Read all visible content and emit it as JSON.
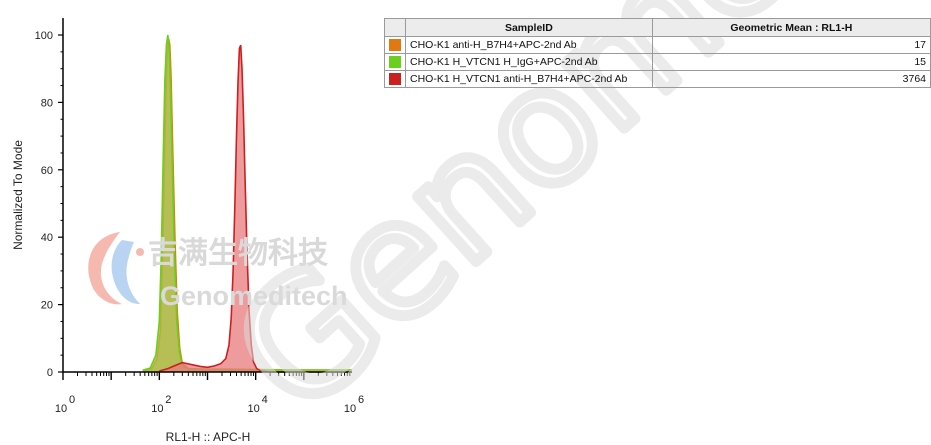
{
  "chart_data": {
    "type": "area",
    "xlabel": "RL1-H :: APC-H",
    "ylabel": "Normalized To Mode",
    "x_scale": "log",
    "xlim": [
      1,
      1000000
    ],
    "ylim": [
      0,
      100
    ],
    "x_ticks": [
      {
        "base": "10",
        "exp": "0"
      },
      {
        "base": "10",
        "exp": "2"
      },
      {
        "base": "10",
        "exp": "4"
      },
      {
        "base": "10",
        "exp": "6"
      }
    ],
    "y_ticks": [
      "0",
      "20",
      "40",
      "60",
      "80",
      "100"
    ],
    "series": [
      {
        "name": "CHO-K1 anti-H_B7H4+APC-2nd Ab",
        "color": "#e07a10",
        "fill": "#d6a24c",
        "geometric_mean": "17",
        "points": [
          [
            50,
            0.5
          ],
          [
            70,
            1
          ],
          [
            90,
            4
          ],
          [
            105,
            12
          ],
          [
            115,
            30
          ],
          [
            125,
            55
          ],
          [
            135,
            80
          ],
          [
            145,
            94
          ],
          [
            155,
            99
          ],
          [
            165,
            97
          ],
          [
            175,
            88
          ],
          [
            190,
            65
          ],
          [
            210,
            40
          ],
          [
            235,
            18
          ],
          [
            265,
            7
          ],
          [
            300,
            2.5
          ],
          [
            400,
            1
          ],
          [
            1000,
            0.8
          ],
          [
            3000,
            0.8
          ],
          [
            100000,
            0.6
          ]
        ]
      },
      {
        "name": "CHO-K1 H_VTCN1 H_IgG+APC-2nd Ab",
        "color": "#6bcf1e",
        "fill": "#a8c24a",
        "geometric_mean": "15",
        "points": [
          [
            45,
            0.5
          ],
          [
            65,
            1.2
          ],
          [
            85,
            5
          ],
          [
            100,
            15
          ],
          [
            110,
            35
          ],
          [
            120,
            62
          ],
          [
            130,
            86
          ],
          [
            140,
            97
          ],
          [
            150,
            100
          ],
          [
            160,
            96
          ],
          [
            170,
            85
          ],
          [
            185,
            62
          ],
          [
            205,
            36
          ],
          [
            230,
            15
          ],
          [
            260,
            6
          ],
          [
            300,
            2
          ],
          [
            400,
            0.8
          ],
          [
            1000,
            0.6
          ],
          [
            100000,
            0.6
          ]
        ]
      },
      {
        "name": "CHO-K1 H_VTCN1 anti-H_B7H4+APC-2nd Ab",
        "color": "#cc1f1f",
        "fill": "#e8797c",
        "geometric_mean": "3764",
        "points": [
          [
            100,
            0.3
          ],
          [
            150,
            1
          ],
          [
            220,
            2
          ],
          [
            300,
            2.8
          ],
          [
            400,
            2.4
          ],
          [
            550,
            2
          ],
          [
            750,
            1.6
          ],
          [
            1000,
            1.4
          ],
          [
            1400,
            1.8
          ],
          [
            1900,
            2.5
          ],
          [
            2400,
            4
          ],
          [
            2800,
            8
          ],
          [
            3100,
            16
          ],
          [
            3400,
            30
          ],
          [
            3700,
            50
          ],
          [
            4000,
            70
          ],
          [
            4300,
            86
          ],
          [
            4600,
            96
          ],
          [
            4900,
            97
          ],
          [
            5200,
            90
          ],
          [
            5600,
            76
          ],
          [
            6000,
            58
          ],
          [
            6600,
            36
          ],
          [
            7300,
            18
          ],
          [
            8100,
            8
          ],
          [
            9000,
            3
          ],
          [
            10500,
            1
          ],
          [
            13000,
            0.3
          ],
          [
            20000,
            0
          ]
        ]
      }
    ]
  },
  "legend_table": {
    "headers": [
      "SampleID",
      "Geometric Mean : RL1-H"
    ]
  },
  "watermark": {
    "chinese": "吉满生物科技",
    "english": "Genomeditech",
    "diagonal": "Genomeditech"
  }
}
